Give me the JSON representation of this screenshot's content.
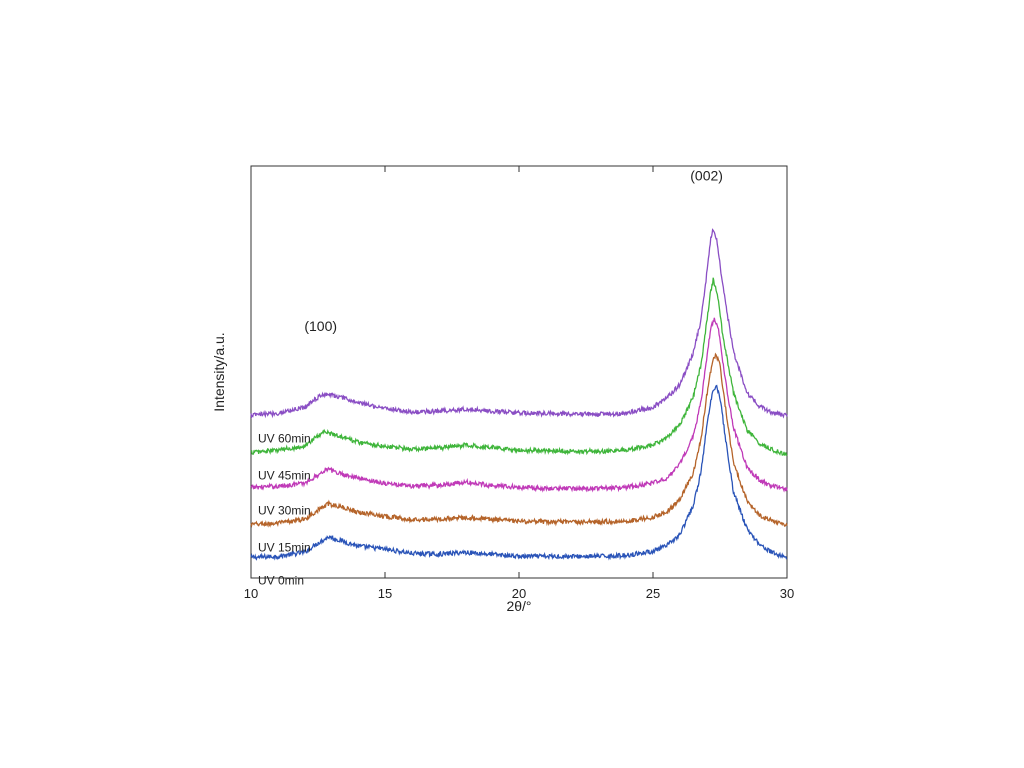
{
  "chart_data": {
    "type": "line",
    "title": "",
    "xlabel": "2θ/°",
    "ylabel": "Intensity/a.u.",
    "xlim": [
      10,
      30
    ],
    "ylim": [
      0,
      20
    ],
    "xticks": [
      "10",
      "15",
      "20",
      "25",
      "30"
    ],
    "grid": false,
    "y_tick_labels_shown": false,
    "annotations": [
      {
        "text": "(100)",
        "x": 12.6,
        "y": 12.0
      },
      {
        "text": "(002)",
        "x": 27.0,
        "y": 19.3
      }
    ],
    "series": [
      {
        "name": "UV 0min",
        "color": "#2a54b8",
        "x": [
          10,
          11,
          12,
          12.5,
          12.9,
          13.5,
          14,
          15,
          16,
          17,
          18,
          19,
          20,
          21,
          22,
          23,
          24,
          25,
          25.5,
          26,
          26.5,
          26.8,
          27.0,
          27.2,
          27.35,
          27.5,
          27.7,
          28.0,
          28.5,
          29,
          29.5,
          30
        ],
        "values": [
          1.0,
          1.05,
          1.25,
          1.7,
          2.0,
          1.75,
          1.55,
          1.4,
          1.2,
          1.15,
          1.25,
          1.15,
          1.05,
          1.05,
          1.05,
          1.05,
          1.1,
          1.3,
          1.55,
          2.1,
          3.5,
          5.2,
          7.3,
          8.9,
          9.4,
          8.8,
          6.8,
          4.2,
          2.4,
          1.6,
          1.2,
          1.0
        ]
      },
      {
        "name": "UV 15min",
        "color": "#b5642a",
        "x": [
          10,
          11,
          12,
          12.5,
          12.9,
          13.5,
          14,
          15,
          16,
          17,
          18,
          19,
          20,
          21,
          22,
          23,
          24,
          25,
          25.5,
          26,
          26.5,
          26.8,
          27.0,
          27.2,
          27.35,
          27.5,
          27.7,
          28.0,
          28.5,
          29,
          29.5,
          30
        ],
        "values": [
          2.6,
          2.65,
          2.85,
          3.3,
          3.6,
          3.4,
          3.2,
          3.0,
          2.85,
          2.85,
          2.95,
          2.85,
          2.75,
          2.72,
          2.72,
          2.72,
          2.75,
          2.95,
          3.2,
          3.8,
          5.1,
          6.8,
          8.8,
          10.4,
          10.9,
          10.3,
          8.3,
          5.6,
          3.8,
          3.0,
          2.75,
          2.6
        ]
      },
      {
        "name": "UV 30min",
        "color": "#c03ab8",
        "x": [
          10,
          11,
          12,
          12.5,
          12.8,
          13.4,
          14,
          15,
          16,
          17,
          18,
          19,
          20,
          21,
          22,
          23,
          24,
          25,
          25.5,
          26,
          26.5,
          26.8,
          27.0,
          27.15,
          27.3,
          27.45,
          27.65,
          28.0,
          28.5,
          29,
          29.5,
          30
        ],
        "values": [
          4.4,
          4.45,
          4.6,
          5.0,
          5.3,
          5.05,
          4.85,
          4.6,
          4.45,
          4.5,
          4.65,
          4.5,
          4.4,
          4.35,
          4.35,
          4.35,
          4.4,
          4.6,
          4.85,
          5.5,
          6.9,
          8.6,
          10.6,
          12.1,
          12.6,
          12.0,
          10.0,
          7.3,
          5.4,
          4.7,
          4.45,
          4.3
        ]
      },
      {
        "name": "UV 45min",
        "color": "#3fb53b",
        "x": [
          10,
          11,
          12,
          12.4,
          12.7,
          13.3,
          14,
          15,
          16,
          17,
          18,
          19,
          20,
          21,
          22,
          23,
          24,
          25,
          25.5,
          26,
          26.5,
          26.8,
          27.0,
          27.15,
          27.25,
          27.4,
          27.6,
          28.0,
          28.5,
          29,
          29.5,
          30
        ],
        "values": [
          6.1,
          6.2,
          6.4,
          6.8,
          7.1,
          6.9,
          6.6,
          6.4,
          6.25,
          6.3,
          6.45,
          6.35,
          6.2,
          6.2,
          6.15,
          6.15,
          6.2,
          6.45,
          6.8,
          7.4,
          8.8,
          10.4,
          12.4,
          13.9,
          14.5,
          13.8,
          11.8,
          9.0,
          7.2,
          6.5,
          6.2,
          6.0
        ]
      },
      {
        "name": "UV 60min",
        "color": "#8a4ec4",
        "x": [
          10,
          11,
          12,
          12.4,
          12.8,
          13.4,
          14,
          15,
          16,
          17,
          18,
          19,
          20,
          21,
          22,
          23,
          24,
          25,
          25.5,
          26,
          26.5,
          26.8,
          27.0,
          27.15,
          27.25,
          27.4,
          27.6,
          28.0,
          28.5,
          29,
          29.5,
          30
        ],
        "values": [
          7.9,
          8.0,
          8.3,
          8.7,
          8.95,
          8.75,
          8.5,
          8.25,
          8.05,
          8.1,
          8.2,
          8.1,
          8.0,
          8.0,
          7.95,
          7.95,
          8.0,
          8.3,
          8.7,
          9.4,
          10.9,
          12.6,
          14.7,
          16.4,
          17.0,
          16.3,
          14.2,
          11.0,
          9.0,
          8.3,
          8.0,
          7.9
        ]
      }
    ]
  }
}
